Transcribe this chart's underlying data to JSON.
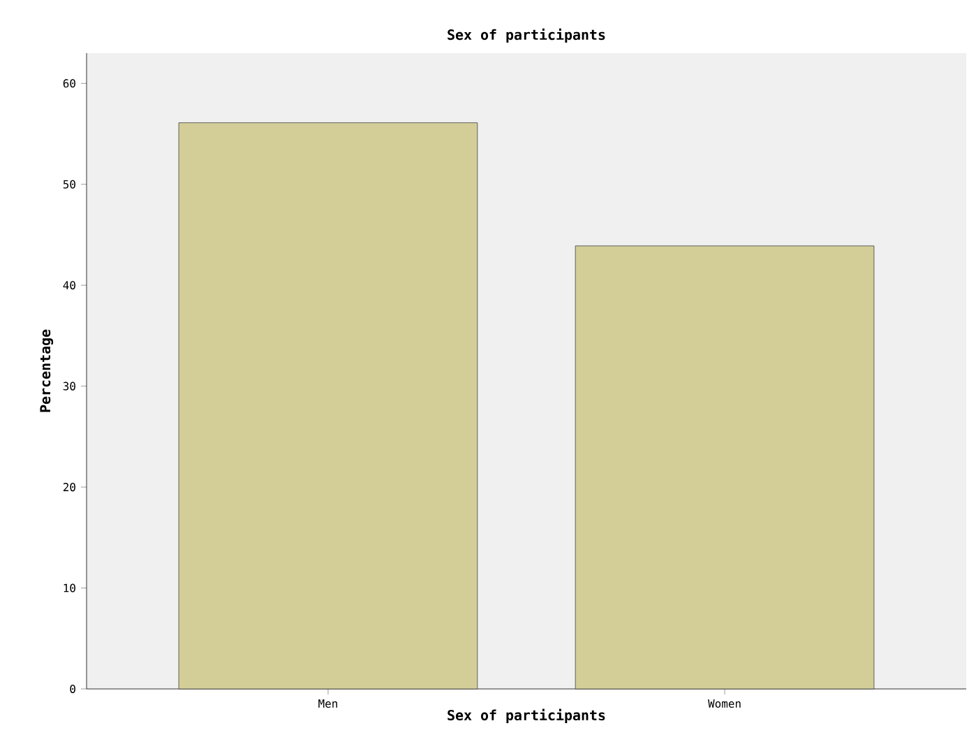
{
  "chart_data": {
    "type": "bar",
    "title": "Sex of participants",
    "xlabel": "Sex of participants",
    "ylabel": "Percentage",
    "categories": [
      "Men",
      "Women"
    ],
    "values": [
      56.1,
      43.9
    ],
    "color": "#d3ce97",
    "ylim": [
      0,
      63
    ],
    "yticks": [
      0,
      10,
      20,
      30,
      40,
      50,
      60
    ]
  }
}
